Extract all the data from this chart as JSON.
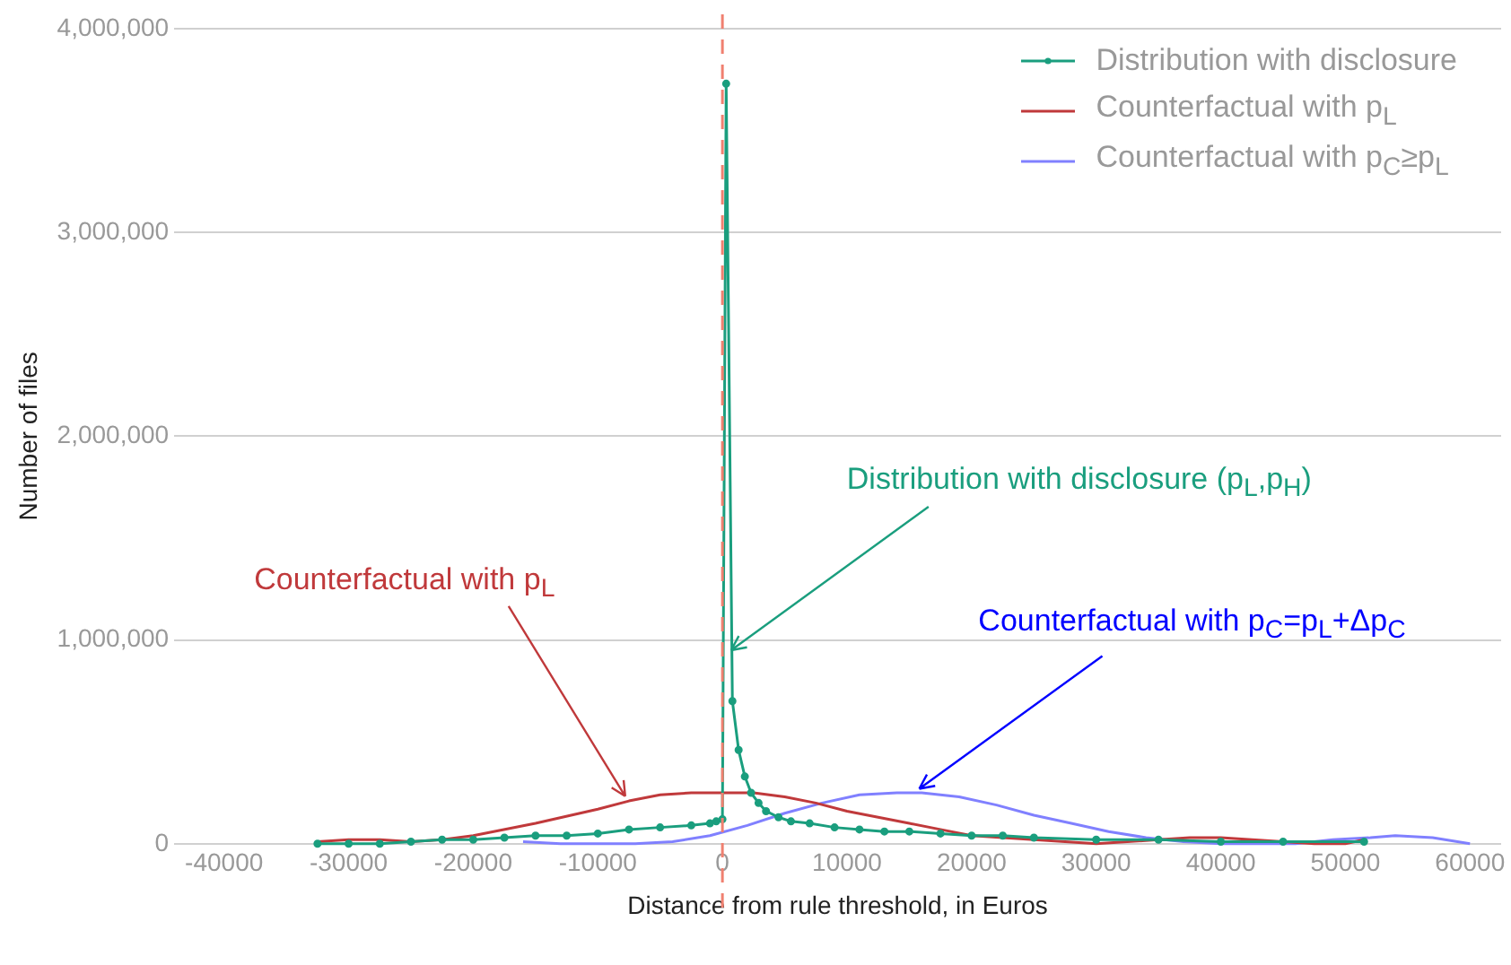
{
  "chart_data": {
    "type": "line",
    "xlabel": "Distance from rule threshold, in Euros",
    "ylabel": "Number of files",
    "xlim": [
      -44000,
      62500
    ],
    "ylim": [
      0,
      4000000
    ],
    "xticks": [
      -40000,
      -30000,
      -20000,
      -10000,
      0,
      10000,
      20000,
      30000,
      40000,
      50000,
      60000
    ],
    "yticks": [
      {
        "value": 0,
        "label": "0"
      },
      {
        "value": 1000000,
        "label": "1,000,000"
      },
      {
        "value": 2000000,
        "label": "2,000,000"
      },
      {
        "value": 3000000,
        "label": "3,000,000"
      },
      {
        "value": 4000000,
        "label": "4,000,000"
      }
    ],
    "grid": "y",
    "legend": "top right",
    "series": [
      {
        "name": "Distribution with disclosure",
        "color": "#1a9e7e",
        "marker": "circle",
        "x": [
          -32500,
          -30000,
          -27500,
          -25000,
          -22500,
          -20000,
          -17500,
          -15000,
          -12500,
          -10000,
          -7500,
          -5000,
          -2500,
          -1000,
          -500,
          0,
          300,
          800,
          1300,
          1800,
          2300,
          2900,
          3500,
          4500,
          5500,
          7000,
          9000,
          11000,
          13000,
          15000,
          17500,
          20000,
          22500,
          25000,
          30000,
          35000,
          40000,
          45000,
          51500
        ],
        "values": [
          0,
          0,
          0,
          10000,
          20000,
          20000,
          30000,
          40000,
          40000,
          50000,
          70000,
          80000,
          90000,
          100000,
          110000,
          120000,
          3730000,
          700000,
          460000,
          330000,
          250000,
          200000,
          160000,
          130000,
          110000,
          100000,
          80000,
          70000,
          60000,
          60000,
          50000,
          40000,
          40000,
          30000,
          20000,
          20000,
          10000,
          10000,
          10000
        ]
      },
      {
        "name": "Counterfactual with p$_{L}$",
        "color": "#c0393b",
        "marker": "none",
        "x": [
          -32500,
          -30000,
          -27500,
          -25000,
          -22500,
          -20000,
          -15000,
          -10000,
          -7500,
          -5000,
          -2500,
          0,
          2500,
          5000,
          7500,
          10000,
          12500,
          15000,
          17500,
          20000,
          22500,
          25000,
          27500,
          30000,
          32500,
          35000,
          37500,
          40000,
          42500,
          45000,
          47500,
          50000,
          51500
        ],
        "values": [
          10000,
          20000,
          20000,
          10000,
          20000,
          40000,
          100000,
          170000,
          210000,
          240000,
          250000,
          250000,
          250000,
          230000,
          200000,
          160000,
          130000,
          100000,
          70000,
          40000,
          30000,
          20000,
          10000,
          0,
          10000,
          20000,
          30000,
          30000,
          20000,
          10000,
          0,
          0,
          20000
        ]
      },
      {
        "name": "Counterfactual with p$_{C}$≥p$_{L}$",
        "color": "#8080ff",
        "marker": "none",
        "x": [
          -16000,
          -13000,
          -10000,
          -7000,
          -4000,
          -1000,
          2000,
          5000,
          8000,
          11000,
          14000,
          16000,
          19000,
          22000,
          25000,
          28000,
          31000,
          34000,
          37000,
          40000,
          43000,
          46000,
          49000,
          52000,
          54000,
          57000,
          60000
        ],
        "values": [
          10000,
          0,
          0,
          0,
          10000,
          40000,
          90000,
          150000,
          200000,
          240000,
          250000,
          250000,
          230000,
          190000,
          140000,
          100000,
          60000,
          30000,
          10000,
          0,
          0,
          0,
          20000,
          30000,
          40000,
          30000,
          0
        ]
      }
    ],
    "ref_lines": [
      {
        "axis": "x",
        "value": 0,
        "color": "#f08070",
        "line_style": "dashed"
      }
    ],
    "annotations": [
      {
        "text": "Counterfactual with p$_{L}$",
        "x": -7800,
        "y": 233000
      },
      {
        "text": "Distribution with disclosure (p$_{L}$,p$_{H}$)",
        "x": 700,
        "y": 950000
      },
      {
        "text": "Counterfactual with p$_{C}$=p$_{L}$+Δp$_{C}$",
        "x": 15800,
        "y": 270000
      }
    ]
  }
}
